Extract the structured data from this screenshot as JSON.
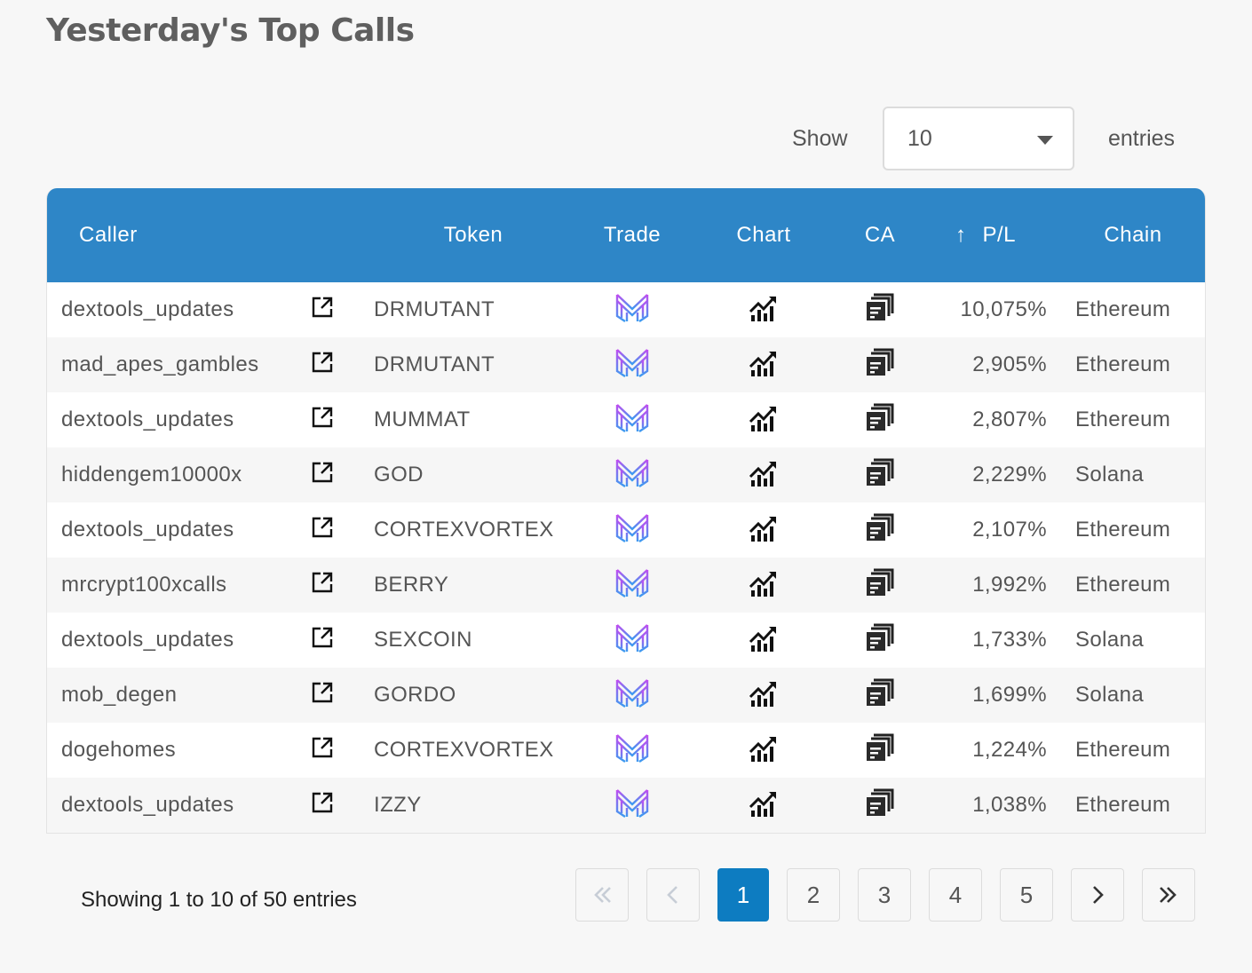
{
  "page": {
    "title": "Yesterday's Top Calls"
  },
  "length": {
    "show_label": "Show",
    "selected": "10",
    "entries_label": "entries"
  },
  "table": {
    "headers": {
      "caller": "Caller",
      "token": "Token",
      "trade": "Trade",
      "chart": "Chart",
      "ca": "CA",
      "pl_arrow": "↑",
      "pl": "P/L",
      "chain": "Chain"
    },
    "rows": [
      {
        "caller": "dextools_updates",
        "token": "DRMUTANT",
        "pl": "10,075%",
        "chain": "Ethereum"
      },
      {
        "caller": "mad_apes_gambles",
        "token": "DRMUTANT",
        "pl": "2,905%",
        "chain": "Ethereum"
      },
      {
        "caller": "dextools_updates",
        "token": "MUMMAT",
        "pl": "2,807%",
        "chain": "Ethereum"
      },
      {
        "caller": "hiddengem10000x",
        "token": "GOD",
        "pl": "2,229%",
        "chain": "Solana"
      },
      {
        "caller": "dextools_updates",
        "token": "CORTEXVORTEX",
        "pl": "2,107%",
        "chain": "Ethereum"
      },
      {
        "caller": "mrcrypt100xcalls",
        "token": "BERRY",
        "pl": "1,992%",
        "chain": "Ethereum"
      },
      {
        "caller": "dextools_updates",
        "token": "SEXCOIN",
        "pl": "1,733%",
        "chain": "Solana"
      },
      {
        "caller": "mob_degen",
        "token": "GORDO",
        "pl": "1,699%",
        "chain": "Solana"
      },
      {
        "caller": "dogehomes",
        "token": "CORTEXVORTEX",
        "pl": "1,224%",
        "chain": "Ethereum"
      },
      {
        "caller": "dextools_updates",
        "token": "IZZY",
        "pl": "1,038%",
        "chain": "Ethereum"
      }
    ]
  },
  "info": "Showing 1 to 10 of 50 entries",
  "pagination": {
    "first": "«",
    "prev": "‹",
    "pages": [
      "1",
      "2",
      "3",
      "4",
      "5"
    ],
    "next": "›",
    "last": "»"
  },
  "colors": {
    "header_bg": "#2e86c7",
    "active_page": "#0d7cc1",
    "trade_icon_top": "#c04ef0",
    "trade_icon_bottom": "#3b9bf0"
  },
  "icons": {
    "external": "external-link-icon",
    "trade": "trade-logo-icon",
    "chart": "chart-icon",
    "ca": "copy-address-icon",
    "sort": "sort-up-arrow-icon"
  }
}
